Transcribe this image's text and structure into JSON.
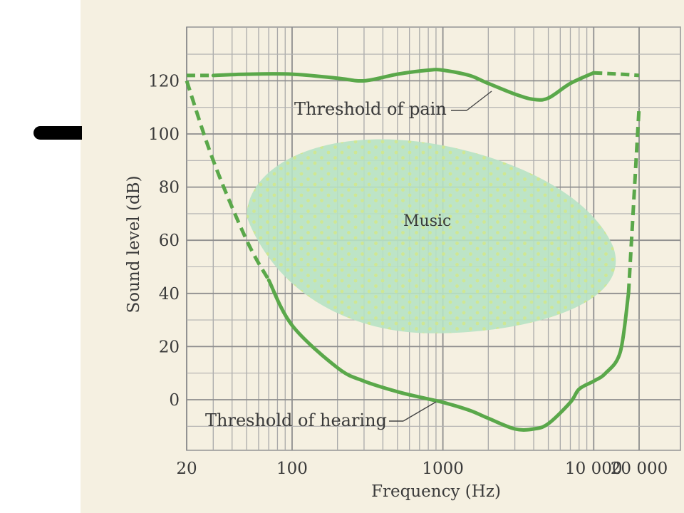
{
  "chart_data": {
    "type": "area",
    "xscale": "log",
    "xlabel": "Frequency (Hz)",
    "ylabel": "Sound level (dB)",
    "xticks": [
      20,
      100,
      1000,
      10000,
      20000
    ],
    "xtick_labels": [
      "20",
      "100",
      "1000",
      "10 000",
      "20 000"
    ],
    "yticks": [
      0,
      20,
      40,
      60,
      80,
      100,
      120
    ],
    "xlim": [
      20,
      30000
    ],
    "ylim": [
      -20,
      140
    ],
    "grid": true,
    "series": [
      {
        "name": "Threshold of pain",
        "color": "#5aa84a",
        "x": [
          20,
          30,
          50,
          100,
          200,
          300,
          500,
          800,
          1000,
          1500,
          2000,
          3000,
          4000,
          5000,
          7000,
          10000,
          15000,
          20000
        ],
        "y": [
          122,
          122,
          122.5,
          122.5,
          121,
          120,
          122.5,
          124,
          124,
          122,
          119,
          115,
          113,
          113.5,
          119,
          123,
          122.5,
          122
        ]
      },
      {
        "name": "Threshold of hearing",
        "color": "#5aa84a",
        "x": [
          20,
          30,
          50,
          70,
          100,
          200,
          300,
          500,
          700,
          1000,
          1500,
          2000,
          3000,
          4000,
          5000,
          7000,
          8000,
          10000,
          12000,
          15000,
          17000,
          20000
        ],
        "y": [
          120,
          90,
          60,
          45,
          28,
          12,
          7,
          3,
          1,
          -1,
          -4,
          -7,
          -11,
          -11,
          -9,
          -1,
          4,
          7,
          10,
          18,
          40,
          110
        ]
      }
    ],
    "regions": [
      {
        "name": "Music",
        "x_range": [
          50,
          15000
        ],
        "y_range": [
          25,
          98
        ],
        "color": "#b7e2c4"
      }
    ],
    "annotations": {
      "pain": "Threshold of pain",
      "hearing": "Threshold of hearing",
      "music": "Music"
    }
  }
}
